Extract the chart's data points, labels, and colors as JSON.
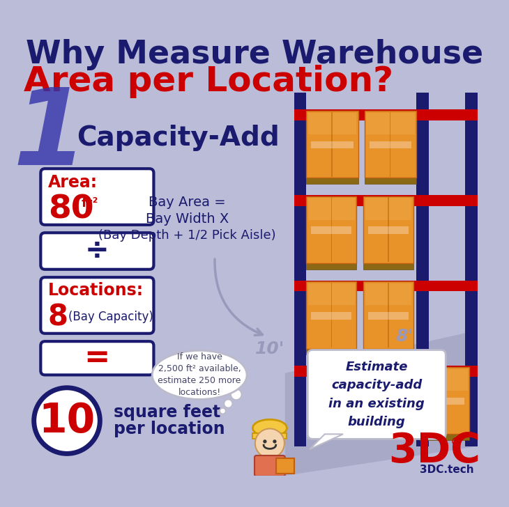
{
  "bg_color": "#bbbcd8",
  "title_line1": "Why Measure Warehouse",
  "title_line2": "Area per Location?",
  "title_color1": "#1a1a6e",
  "title_color2": "#cc0000",
  "step_number": "1",
  "step_label": "Capacity-Add",
  "step_number_color": "#3333aa",
  "step_label_color": "#1a1a6e",
  "area_label": "Area:",
  "area_value": "80",
  "area_unit": "ft²",
  "area_label_color": "#cc0000",
  "area_value_color": "#cc0000",
  "box_border": "#1a1a6e",
  "divide_symbol": "÷",
  "divide_symbol_color": "#1a1a6e",
  "locations_label": "Locations:",
  "locations_value": "8",
  "locations_sub": "(Bay Capacity)",
  "locations_label_color": "#cc0000",
  "locations_value_color": "#cc0000",
  "equals_symbol_color": "#cc0000",
  "result_value": "10",
  "result_label1": "square feet",
  "result_label2": "per location",
  "result_circle_color": "#1a1a6e",
  "result_value_color": "#cc0000",
  "bay_area_line1": "Bay Area =",
  "bay_area_line2": "Bay Width X",
  "bay_area_line3": "(Bay Depth + 1/2 Pick Aisle)",
  "dimension_8": "8'",
  "dimension_10": "10'",
  "thought_bubble": "If we have\n2,500 ft² available,\nestimate 250 more\nlocations!",
  "speech_bubble": "Estimate\ncapacity-add\nin an existing\nbuilding",
  "brand_text": "3DC",
  "brand_sub": "3DC.tech",
  "brand_color": "#cc0000",
  "shelf_color": "#cc0000",
  "post_color": "#1a1a6e",
  "box_color": "#e8922a",
  "shadow_color": "#9999bb",
  "floor_shadow": "#a0a0c0"
}
